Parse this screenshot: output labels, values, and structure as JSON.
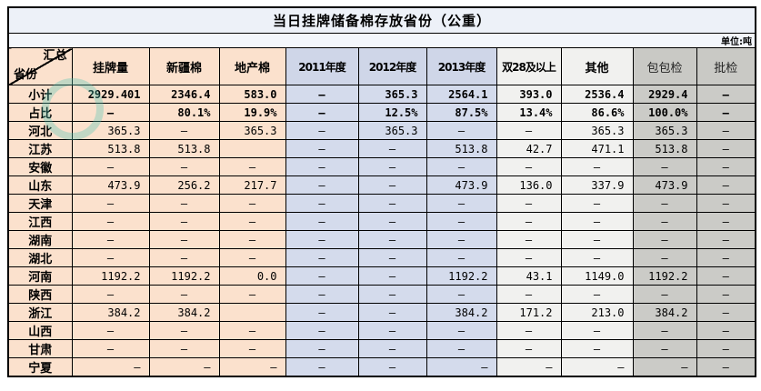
{
  "colors": {
    "peach": "#fbe1cd",
    "blue": "#d4dbec",
    "header_blue": "#cfd6e8",
    "light": "#f1f1ef",
    "gray": "#cbcbc7",
    "header_gray": "#c9c9c5",
    "title_bg": "#edf1f8",
    "unit_bg": "#f3f6fb",
    "border": "#000000",
    "watermark_teal": "#49c5b1"
  },
  "chart_data": {
    "type": "table",
    "title": "当日挂牌储备棉存放省份（公重）",
    "unit_label": "单位:吨",
    "corner": {
      "top_label": "汇总",
      "bottom_label": "省份"
    },
    "columns": [
      {
        "label": "挂牌量",
        "group": "peach"
      },
      {
        "label": "新疆棉",
        "group": "peach"
      },
      {
        "label": "地产棉",
        "group": "peach"
      },
      {
        "label": "2011年度",
        "group": "blue"
      },
      {
        "label": "2012年度",
        "group": "blue"
      },
      {
        "label": "2013年度",
        "group": "blue"
      },
      {
        "label": "双28及以上",
        "group": "light"
      },
      {
        "label": "其他",
        "group": "light"
      },
      {
        "label": "包包检",
        "group": "gray"
      },
      {
        "label": "批检",
        "group": "gray"
      }
    ],
    "rows": [
      {
        "name": "小计",
        "bold": true,
        "cells": [
          "2929.401",
          "2346.4",
          "583.0",
          "—",
          "365.3",
          "2564.1",
          "393.0",
          "2536.4",
          "2929.4",
          "—"
        ]
      },
      {
        "name": "占比",
        "bold": true,
        "cells": [
          "—",
          "80.1%",
          "19.9%",
          "—",
          "12.5%",
          "87.5%",
          "13.4%",
          "86.6%",
          "100.0%",
          "—"
        ]
      },
      {
        "name": "河北",
        "cells": [
          "365.3",
          "—",
          "365.3",
          "—",
          "365.3",
          "—",
          "—",
          "365.3",
          "365.3",
          "—"
        ]
      },
      {
        "name": "江苏",
        "cells": [
          "513.8",
          "513.8",
          "",
          "—",
          "—",
          "513.8",
          "42.7",
          "471.1",
          "513.8",
          "—"
        ]
      },
      {
        "name": "安徽",
        "cells": [
          "—",
          "—",
          "—",
          "—",
          "—",
          "—",
          "—",
          "—",
          "—",
          "—"
        ]
      },
      {
        "name": "山东",
        "cells": [
          "473.9",
          "256.2",
          "217.7",
          "—",
          "—",
          "473.9",
          "136.0",
          "337.9",
          "473.9",
          "—"
        ]
      },
      {
        "name": "天津",
        "cells": [
          "—",
          "—",
          "—",
          "—",
          "—",
          "—",
          "—",
          "—",
          "—",
          "—"
        ]
      },
      {
        "name": "江西",
        "cells": [
          "—",
          "—",
          "—",
          "—",
          "—",
          "—",
          "—",
          "—",
          "—",
          "—"
        ]
      },
      {
        "name": "湖南",
        "cells": [
          "—",
          "—",
          "—",
          "—",
          "—",
          "—",
          "—",
          "—",
          "—",
          "—"
        ]
      },
      {
        "name": "湖北",
        "cells": [
          "—",
          "—",
          "—",
          "—",
          "—",
          "—",
          "—",
          "—",
          "—",
          "—"
        ]
      },
      {
        "name": "河南",
        "cells": [
          "1192.2",
          "1192.2",
          "0.0",
          "—",
          "—",
          "1192.2",
          "43.1",
          "1149.0",
          "1192.2",
          "—"
        ]
      },
      {
        "name": "陕西",
        "cells": [
          "—",
          "—",
          "—",
          "—",
          "—",
          "—",
          "—",
          "—",
          "—",
          "—"
        ]
      },
      {
        "name": "浙江",
        "cells": [
          "384.2",
          "384.2",
          "",
          "—",
          "—",
          "384.2",
          "171.2",
          "213.0",
          "384.2",
          "—"
        ]
      },
      {
        "name": "山西",
        "cells": [
          "—",
          "—",
          "—",
          "—",
          "—",
          "—",
          "—",
          "—",
          "—",
          "—"
        ]
      },
      {
        "name": "甘肃",
        "cells": [
          "—",
          "—",
          "—",
          "—",
          "—",
          "—",
          "—",
          "—",
          "—",
          "—"
        ]
      },
      {
        "name": "宁夏",
        "align": [
          "right",
          "right",
          "right",
          "center",
          "center",
          "right",
          "right",
          "right",
          "right",
          "center"
        ],
        "cells": [
          "—",
          "—",
          "—",
          "—",
          "—",
          "—",
          "—",
          "—",
          "—",
          "—"
        ]
      }
    ]
  }
}
